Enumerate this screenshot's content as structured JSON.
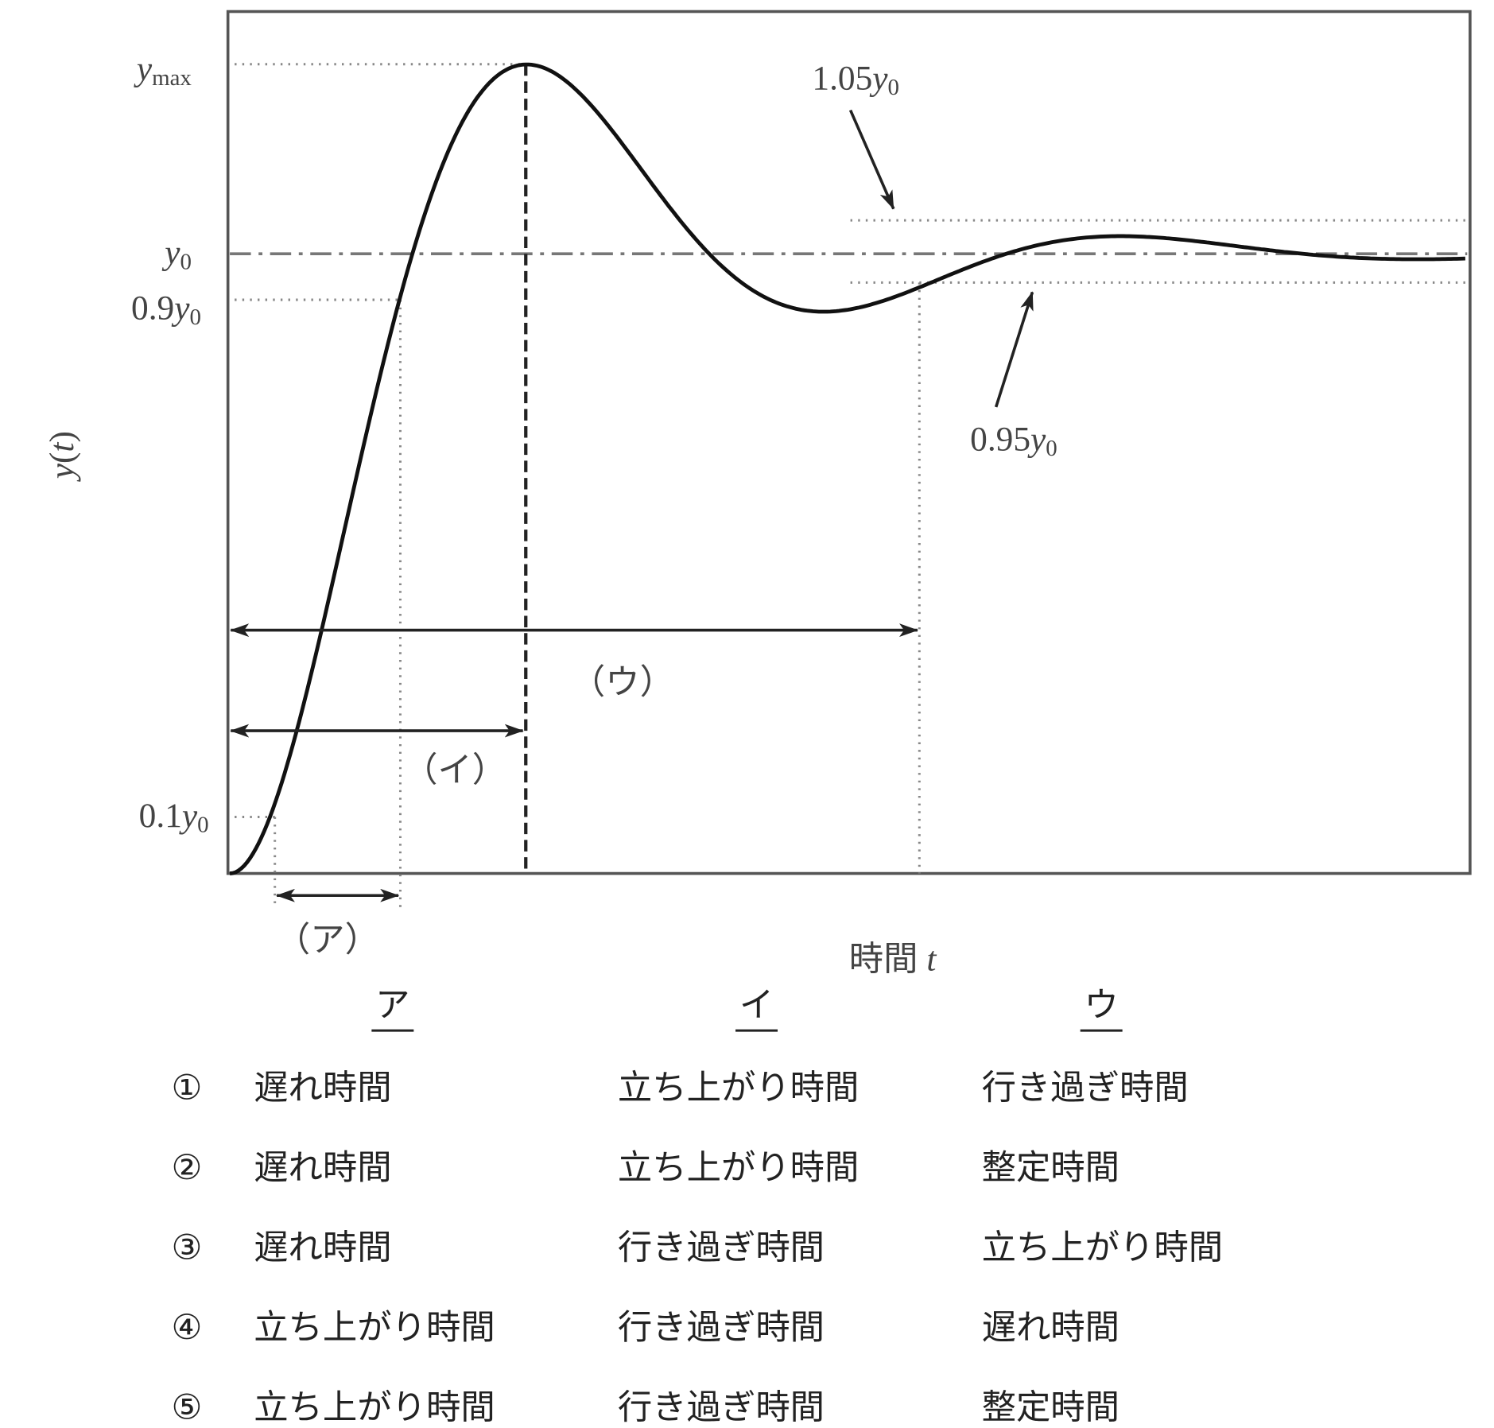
{
  "figure": {
    "y_axis_label": "y(t)",
    "x_axis_label": "時間 t",
    "levels": {
      "y_max": "ymax",
      "y0": "y0",
      "y90": "0.9y0",
      "y10": "0.1y0"
    },
    "band_upper": "1.05y0",
    "band_lower": "0.95y0",
    "intervals": {
      "a": "（ア）",
      "i": "（イ）",
      "u": "（ウ）"
    }
  },
  "options_table": {
    "header": [
      "ア",
      "イ",
      "ウ"
    ],
    "rows": [
      [
        "①",
        "遅れ時間",
        "立ち上がり時間",
        "行き過ぎ時間"
      ],
      [
        "②",
        "遅れ時間",
        "立ち上がり時間",
        "整定時間"
      ],
      [
        "③",
        "遅れ時間",
        "行き過ぎ時間",
        "立ち上がり時間"
      ],
      [
        "④",
        "立ち上がり時間",
        "行き過ぎ時間",
        "遅れ時間"
      ],
      [
        "⑤",
        "立ち上がり時間",
        "行き過ぎ時間",
        "整定時間"
      ]
    ]
  }
}
